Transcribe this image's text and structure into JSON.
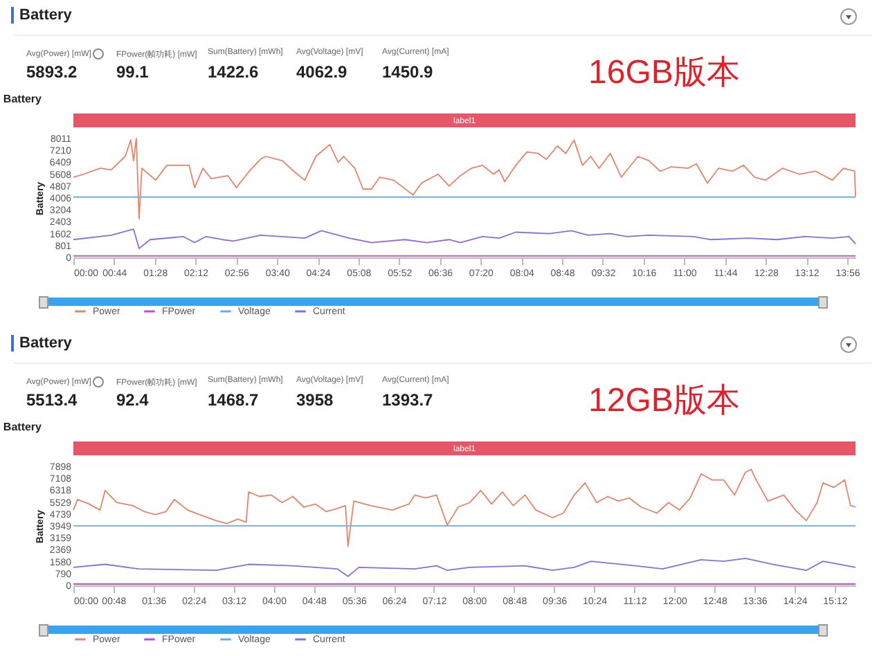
{
  "chart_data": [
    {
      "type": "other",
      "title": "Battery",
      "annotations": [
        "Avg(Power) [mW]",
        "5893.2",
        "FPower(帧功耗) [mW]",
        "99.1",
        "Sum(Battery) [mWh]",
        "1422.6",
        "Avg(Voltage) [mV]",
        "4062.9",
        "Avg(Current) [mA]",
        "1450.9",
        "16GB版本"
      ]
    },
    {
      "type": "line",
      "title": "Battery",
      "ylabel": "Battery",
      "legend": "bottom",
      "xlim": [
        0,
        845
      ],
      "xticks": [
        {
          "value": 0,
          "label": "00:00"
        },
        {
          "value": 44,
          "label": "00:44"
        },
        {
          "value": 88,
          "label": "01:28"
        },
        {
          "value": 132,
          "label": "02:12"
        },
        {
          "value": 176,
          "label": "02:56"
        },
        {
          "value": 220,
          "label": "03:40"
        },
        {
          "value": 264,
          "label": "04:24"
        },
        {
          "value": 308,
          "label": "05:08"
        },
        {
          "value": 352,
          "label": "05:52"
        },
        {
          "value": 396,
          "label": "06:36"
        },
        {
          "value": 440,
          "label": "07:20"
        },
        {
          "value": 484,
          "label": "08:04"
        },
        {
          "value": 528,
          "label": "08:48"
        },
        {
          "value": 572,
          "label": "09:32"
        },
        {
          "value": 616,
          "label": "10:16"
        },
        {
          "value": 660,
          "label": "11:00"
        },
        {
          "value": 704,
          "label": "11:44"
        },
        {
          "value": 748,
          "label": "12:28"
        },
        {
          "value": 792,
          "label": "13:12"
        },
        {
          "value": 836,
          "label": "13:56"
        }
      ],
      "ylim": [
        0,
        8011
      ],
      "yticks": [
        0,
        801,
        1602,
        2403,
        3204,
        4006,
        4807,
        5608,
        6409,
        7210,
        8011
      ],
      "annotations": [
        "label1"
      ],
      "series": [
        {
          "name": "Power",
          "color": "#e8836a",
          "x": [
            0,
            11,
            29,
            41,
            56,
            62,
            65,
            68,
            71,
            74,
            89,
            101,
            125,
            131,
            140,
            149,
            167,
            176,
            190,
            202,
            208,
            226,
            238,
            250,
            262,
            277,
            286,
            292,
            304,
            313,
            322,
            331,
            346,
            367,
            376,
            394,
            406,
            418,
            430,
            442,
            454,
            460,
            466,
            478,
            490,
            502,
            511,
            523,
            532,
            541,
            550,
            559,
            568,
            580,
            592,
            610,
            622,
            634,
            646,
            664,
            673,
            685,
            697,
            712,
            724,
            736,
            748,
            766,
            784,
            802,
            820,
            832,
            844,
            845
          ],
          "values": [
            5400,
            5600,
            6000,
            5900,
            6800,
            7900,
            6500,
            8000,
            2600,
            6000,
            5200,
            6200,
            6200,
            4700,
            6000,
            5300,
            5500,
            4700,
            5800,
            6600,
            6800,
            6500,
            5800,
            5200,
            6800,
            7600,
            6400,
            6800,
            6000,
            4600,
            4600,
            5400,
            5200,
            4200,
            5000,
            5600,
            4800,
            5500,
            6000,
            6200,
            5600,
            5900,
            5100,
            6200,
            7100,
            7000,
            6600,
            7500,
            7000,
            7900,
            6200,
            6800,
            6000,
            7000,
            5400,
            6800,
            6500,
            5800,
            6100,
            6000,
            6300,
            5000,
            6000,
            5800,
            6200,
            5400,
            5200,
            6000,
            5600,
            5800,
            5200,
            6000,
            5800,
            4100
          ]
        },
        {
          "name": "FPower",
          "color": "#c44dc4",
          "x": [
            0,
            845
          ],
          "values": [
            99,
            99
          ]
        },
        {
          "name": "Voltage",
          "color": "#6aaee8",
          "x": [
            0,
            845
          ],
          "values": [
            4063,
            4063
          ]
        },
        {
          "name": "Current",
          "color": "#8a6de0",
          "x": [
            0,
            41,
            65,
            71,
            83,
            119,
            131,
            143,
            161,
            173,
            202,
            250,
            268,
            298,
            322,
            358,
            382,
            406,
            418,
            442,
            460,
            478,
            514,
            538,
            556,
            580,
            598,
            622,
            670,
            688,
            730,
            760,
            790,
            820,
            838,
            845
          ],
          "values": [
            1200,
            1500,
            1900,
            600,
            1200,
            1400,
            1000,
            1400,
            1200,
            1100,
            1500,
            1300,
            1800,
            1300,
            1000,
            1200,
            1000,
            1200,
            1000,
            1400,
            1300,
            1700,
            1600,
            1800,
            1500,
            1600,
            1400,
            1500,
            1400,
            1200,
            1300,
            1200,
            1400,
            1300,
            1400,
            900
          ]
        }
      ]
    },
    {
      "type": "other",
      "title": "Battery",
      "annotations": [
        "Avg(Power) [mW]",
        "5513.4",
        "FPower(帧功耗) [mW]",
        "92.4",
        "Sum(Battery) [mWh]",
        "1468.7",
        "Avg(Voltage) [mV]",
        "3958",
        "Avg(Current) [mA]",
        "1393.7",
        "12GB版本"
      ]
    },
    {
      "type": "line",
      "title": "Battery",
      "ylabel": "Battery",
      "legend": "bottom",
      "xlim": [
        0,
        937
      ],
      "xticks": [
        {
          "value": 0,
          "label": "00:00"
        },
        {
          "value": 48,
          "label": "00:48"
        },
        {
          "value": 96,
          "label": "01:36"
        },
        {
          "value": 144,
          "label": "02:24"
        },
        {
          "value": 192,
          "label": "03:12"
        },
        {
          "value": 240,
          "label": "04:00"
        },
        {
          "value": 288,
          "label": "04:48"
        },
        {
          "value": 336,
          "label": "05:36"
        },
        {
          "value": 384,
          "label": "06:24"
        },
        {
          "value": 432,
          "label": "07:12"
        },
        {
          "value": 480,
          "label": "08:00"
        },
        {
          "value": 528,
          "label": "08:48"
        },
        {
          "value": 576,
          "label": "09:36"
        },
        {
          "value": 624,
          "label": "10:24"
        },
        {
          "value": 672,
          "label": "11:12"
        },
        {
          "value": 720,
          "label": "12:00"
        },
        {
          "value": 768,
          "label": "12:48"
        },
        {
          "value": 816,
          "label": "13:36"
        },
        {
          "value": 864,
          "label": "14:24"
        },
        {
          "value": 912,
          "label": "15:12"
        }
      ],
      "ylim": [
        0,
        7898
      ],
      "yticks": [
        0,
        790,
        1580,
        2369,
        3159,
        3949,
        4739,
        5529,
        6318,
        7108,
        7898
      ],
      "annotations": [
        "label1"
      ],
      "series": [
        {
          "name": "Power",
          "color": "#e8836a",
          "x": [
            0,
            5,
            19,
            32,
            38,
            52,
            71,
            85,
            98,
            111,
            121,
            137,
            151,
            171,
            184,
            197,
            207,
            210,
            223,
            237,
            250,
            263,
            276,
            290,
            303,
            316,
            326,
            329,
            336,
            356,
            382,
            402,
            409,
            422,
            435,
            448,
            461,
            475,
            488,
            501,
            514,
            527,
            541,
            554,
            574,
            587,
            600,
            613,
            627,
            640,
            653,
            666,
            680,
            699,
            713,
            726,
            739,
            752,
            765,
            779,
            792,
            805,
            812,
            818,
            832,
            851,
            865,
            878,
            891,
            898,
            911,
            924,
            931,
            937
          ],
          "values": [
            5000,
            5700,
            5400,
            5000,
            6300,
            5500,
            5300,
            4900,
            4700,
            4900,
            5700,
            5000,
            4700,
            4300,
            4100,
            4400,
            4200,
            6200,
            5900,
            6000,
            5500,
            5900,
            5200,
            5400,
            4900,
            5100,
            5300,
            2600,
            5600,
            5300,
            5000,
            5400,
            6000,
            5800,
            6000,
            4000,
            5200,
            5500,
            6300,
            5400,
            6200,
            5300,
            6000,
            5000,
            4500,
            4800,
            6000,
            6800,
            5500,
            5900,
            5600,
            5800,
            5200,
            4800,
            5500,
            5000,
            5800,
            7400,
            7000,
            7000,
            6000,
            7500,
            7700,
            7000,
            5600,
            6000,
            5000,
            4300,
            5500,
            6800,
            6500,
            7000,
            5300,
            5200
          ]
        },
        {
          "name": "FPower",
          "color": "#c44dc4",
          "x": [
            0,
            937
          ],
          "values": [
            92,
            92
          ]
        },
        {
          "name": "Voltage",
          "color": "#6aaee8",
          "x": [
            0,
            937
          ],
          "values": [
            3958,
            3958
          ]
        },
        {
          "name": "Current",
          "color": "#8a6de0",
          "x": [
            0,
            38,
            78,
            171,
            210,
            263,
            316,
            329,
            342,
            409,
            435,
            448,
            475,
            541,
            574,
            600,
            620,
            673,
            706,
            752,
            779,
            805,
            838,
            878,
            898,
            937
          ],
          "values": [
            1200,
            1400,
            1100,
            1000,
            1400,
            1300,
            1100,
            600,
            1200,
            1100,
            1300,
            1000,
            1200,
            1300,
            1000,
            1200,
            1600,
            1300,
            1100,
            1700,
            1600,
            1800,
            1400,
            1000,
            1600,
            1200
          ]
        }
      ]
    }
  ]
}
